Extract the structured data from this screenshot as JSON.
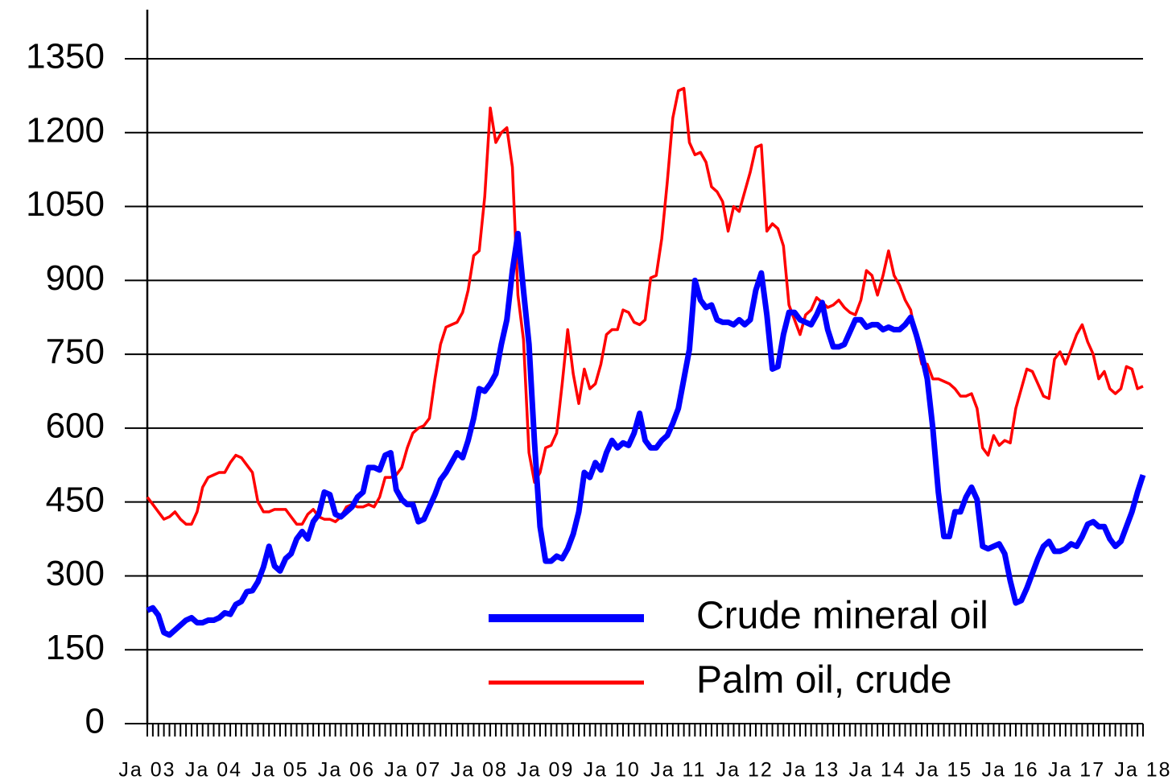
{
  "chart_data": {
    "type": "line",
    "categories": [
      "Ja 03",
      null,
      null,
      null,
      null,
      null,
      null,
      null,
      null,
      null,
      null,
      null,
      "Ja 04",
      null,
      null,
      null,
      null,
      null,
      null,
      null,
      null,
      null,
      null,
      null,
      "Ja 05",
      null,
      null,
      null,
      null,
      null,
      null,
      null,
      null,
      null,
      null,
      null,
      "Ja 06",
      null,
      null,
      null,
      null,
      null,
      null,
      null,
      null,
      null,
      null,
      null,
      "Ja 07",
      null,
      null,
      null,
      null,
      null,
      null,
      null,
      null,
      null,
      null,
      null,
      "Ja 08",
      null,
      null,
      null,
      null,
      null,
      null,
      null,
      null,
      null,
      null,
      null,
      "Ja 09",
      null,
      null,
      null,
      null,
      null,
      null,
      null,
      null,
      null,
      null,
      null,
      "Ja 10",
      null,
      null,
      null,
      null,
      null,
      null,
      null,
      null,
      null,
      null,
      null,
      "Ja 11",
      null,
      null,
      null,
      null,
      null,
      null,
      null,
      null,
      null,
      null,
      null,
      "Ja 12",
      null,
      null,
      null,
      null,
      null,
      null,
      null,
      null,
      null,
      null,
      null,
      "Ja 13",
      null,
      null,
      null,
      null,
      null,
      null,
      null,
      null,
      null,
      null,
      null,
      "Ja 14",
      null,
      null,
      null,
      null,
      null,
      null,
      null,
      null,
      null,
      null,
      null,
      "Ja 15",
      null,
      null,
      null,
      null,
      null,
      null,
      null,
      null,
      null,
      null,
      null,
      "Ja 16",
      null,
      null,
      null,
      null,
      null,
      null,
      null,
      null,
      null,
      null,
      null,
      "Ja 17",
      null,
      null,
      null,
      null,
      null,
      null,
      null,
      null,
      null,
      null,
      null,
      "Ja 18"
    ],
    "series": [
      {
        "name": "Crude mineral oil",
        "color": "#0000ff",
        "width": 7,
        "values": [
          230,
          235,
          220,
          185,
          180,
          190,
          200,
          210,
          215,
          205,
          205,
          210,
          210,
          215,
          225,
          222,
          242,
          248,
          268,
          270,
          288,
          318,
          360,
          320,
          310,
          335,
          345,
          375,
          390,
          375,
          410,
          425,
          470,
          465,
          425,
          420,
          430,
          440,
          460,
          470,
          520,
          520,
          515,
          545,
          550,
          475,
          455,
          445,
          445,
          410,
          415,
          440,
          465,
          495,
          510,
          530,
          550,
          540,
          575,
          620,
          680,
          675,
          690,
          710,
          770,
          820,
          920,
          995,
          880,
          770,
          570,
          400,
          330,
          330,
          340,
          335,
          355,
          385,
          430,
          510,
          500,
          530,
          515,
          550,
          575,
          560,
          570,
          565,
          590,
          630,
          575,
          560,
          560,
          575,
          585,
          610,
          640,
          700,
          760,
          900,
          860,
          845,
          850,
          820,
          815,
          815,
          810,
          820,
          810,
          820,
          880,
          915,
          830,
          720,
          725,
          790,
          835,
          835,
          820,
          815,
          810,
          830,
          855,
          800,
          765,
          765,
          770,
          795,
          820,
          820,
          805,
          810,
          810,
          800,
          805,
          800,
          800,
          810,
          825,
          790,
          750,
          700,
          600,
          470,
          380,
          380,
          430,
          430,
          460,
          480,
          455,
          360,
          355,
          360,
          365,
          345,
          290,
          245,
          250,
          275,
          305,
          335,
          360,
          370,
          350,
          350,
          355,
          365,
          360,
          380,
          405,
          410,
          400,
          400,
          375,
          360,
          370,
          400,
          430,
          470,
          505
        ]
      },
      {
        "name": "Palm oil, crude",
        "color": "#ff0000",
        "width": 3.5,
        "values": [
          460,
          445,
          430,
          415,
          420,
          430,
          415,
          405,
          405,
          430,
          480,
          500,
          505,
          510,
          510,
          530,
          545,
          540,
          525,
          510,
          450,
          430,
          430,
          435,
          435,
          435,
          420,
          405,
          405,
          425,
          435,
          420,
          415,
          415,
          410,
          420,
          440,
          445,
          440,
          440,
          445,
          440,
          460,
          500,
          500,
          505,
          520,
          560,
          590,
          600,
          605,
          620,
          700,
          770,
          805,
          810,
          815,
          835,
          880,
          950,
          960,
          1070,
          1250,
          1180,
          1200,
          1210,
          1130,
          870,
          780,
          550,
          490,
          510,
          560,
          565,
          590,
          690,
          800,
          710,
          650,
          720,
          680,
          690,
          730,
          790,
          800,
          800,
          840,
          835,
          815,
          810,
          820,
          905,
          910,
          985,
          1100,
          1230,
          1285,
          1290,
          1180,
          1155,
          1160,
          1140,
          1090,
          1080,
          1060,
          1000,
          1050,
          1040,
          1080,
          1120,
          1170,
          1175,
          1000,
          1015,
          1005,
          970,
          850,
          820,
          790,
          830,
          840,
          865,
          855,
          845,
          850,
          860,
          845,
          835,
          830,
          860,
          920,
          910,
          870,
          910,
          960,
          910,
          890,
          860,
          840,
          780,
          730,
          730,
          700,
          700,
          695,
          690,
          680,
          665,
          665,
          670,
          640,
          560,
          545,
          585,
          565,
          575,
          570,
          640,
          680,
          720,
          715,
          690,
          665,
          660,
          740,
          755,
          730,
          760,
          790,
          810,
          775,
          750,
          700,
          715,
          680,
          670,
          680,
          725,
          720,
          680,
          685
        ]
      }
    ],
    "ylim": [
      0,
      1350
    ],
    "yticks": [
      0,
      150,
      300,
      450,
      600,
      750,
      900,
      1050,
      1200,
      1350
    ],
    "grid": true,
    "legend": "lower right"
  }
}
